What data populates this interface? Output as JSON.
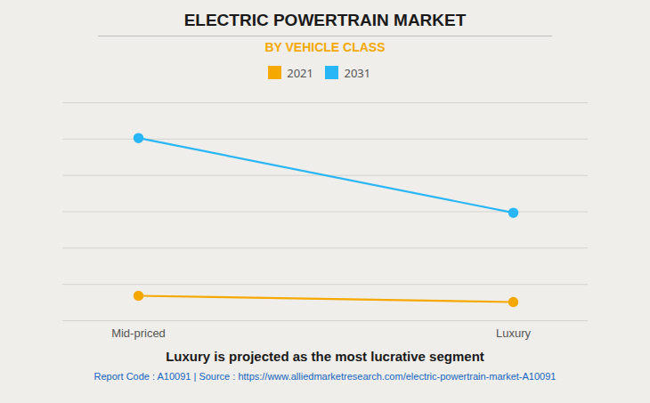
{
  "chart_data": {
    "type": "line",
    "title": "ELECTRIC POWERTRAIN MARKET",
    "subtitle": "BY VEHICLE CLASS",
    "caption": "Luxury is projected as the most lucrative segment",
    "footer": "Report Code : A10091  |  Source : https://www.alliedmarketresearch.com/electric-powertrain-market-A10091",
    "categories": [
      "Mid-priced",
      "Luxury"
    ],
    "series": [
      {
        "name": "2021",
        "color": "#F5A800",
        "values": [
          0.12,
          0.09
        ],
        "marker": "circle"
      },
      {
        "name": "2031",
        "color": "#29B6F6",
        "values": [
          0.88,
          0.52
        ],
        "marker": "circle"
      }
    ],
    "ylim": [
      0,
      1.05
    ],
    "yticks": [
      0,
      0.175,
      0.35,
      0.525,
      0.7,
      0.875,
      1.05
    ],
    "grid": true,
    "legend": "top",
    "tick_labels": "x"
  }
}
